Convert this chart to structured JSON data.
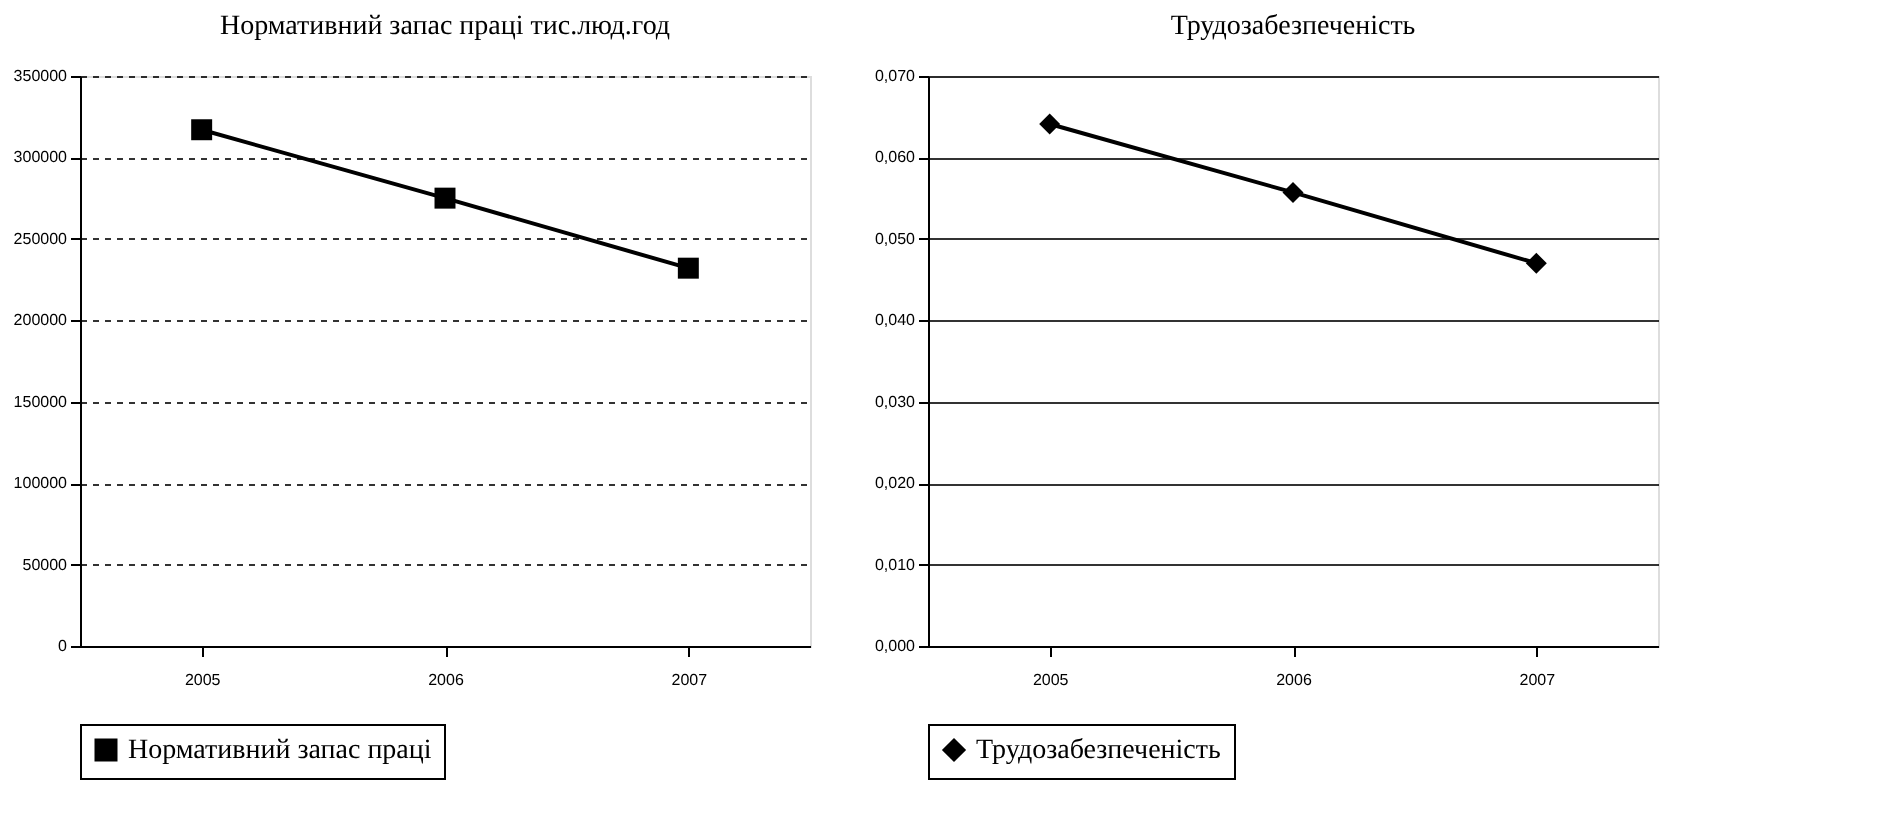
{
  "chart_data": [
    {
      "type": "line",
      "title": "Нормативний запас праці тис.люд.год",
      "categories": [
        "2005",
        "2006",
        "2007"
      ],
      "series": [
        {
          "name": "Нормативний запас праці",
          "color": "#000000",
          "values": [
            317000,
            275000,
            232000
          ]
        }
      ],
      "ylim": [
        0,
        350000
      ],
      "yticks": [
        0,
        50000,
        100000,
        150000,
        200000,
        250000,
        300000,
        350000
      ],
      "grid": "y",
      "legend": "bottom",
      "marker": "square",
      "line_style": "solid"
    },
    {
      "type": "line",
      "title": "Трудозабезпеченість",
      "categories": [
        "2005",
        "2006",
        "2007"
      ],
      "series": [
        {
          "name": "Трудозабезпеченість",
          "color": "#000000",
          "values": [
            0.0641,
            0.0557,
            0.047
          ]
        }
      ],
      "ylim": [
        0,
        0.07
      ],
      "yticks": [
        {
          "value": 0,
          "label": "0,000"
        },
        {
          "value": 0.01,
          "label": "0,010"
        },
        {
          "value": 0.02,
          "label": "0,020"
        },
        {
          "value": 0.03,
          "label": "0,030"
        },
        {
          "value": 0.04,
          "label": "0,040"
        },
        {
          "value": 0.05,
          "label": "0,050"
        },
        {
          "value": 0.06,
          "label": "0,060"
        },
        {
          "value": 0.07,
          "label": "0,070"
        }
      ],
      "grid": "y",
      "legend": "bottom",
      "marker": "diamond",
      "line_style": "solid"
    }
  ]
}
